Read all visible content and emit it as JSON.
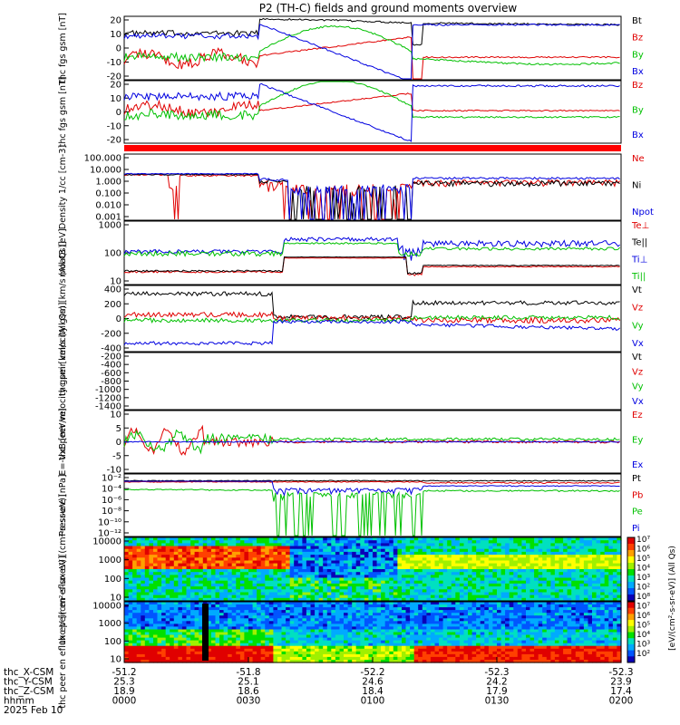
{
  "title": "P2 (TH-C) fields and ground moments overview",
  "chart_data": {
    "type": "line",
    "title": "P2 (TH-C) fields and ground moments overview",
    "x_footer": {
      "rows": [
        {
          "label": "thc_X-CSM",
          "values": [
            "-51.2",
            "-51.8",
            "-52.2",
            "-52.3",
            "-52.3"
          ]
        },
        {
          "label": "thc_Y-CSM",
          "values": [
            "25.3",
            "25.1",
            "24.6",
            "24.2",
            "23.9"
          ]
        },
        {
          "label": "thc_Z-CSM",
          "values": [
            "18.9",
            "18.6",
            "18.4",
            "17.9",
            "17.4"
          ]
        },
        {
          "label": "hhmm",
          "values": [
            "0000",
            "0030",
            "0100",
            "0130",
            "0200"
          ]
        }
      ],
      "date": "2025 Feb 10"
    },
    "panels": [
      {
        "id": "fgs1",
        "ylabel": "thc fgs gsm [nT]",
        "ylim": [
          -20,
          25
        ],
        "ticks": [
          "20",
          "10",
          "0",
          "-10",
          "-20"
        ],
        "legend": [
          {
            "name": "Bt",
            "color": "#000000"
          },
          {
            "name": "Bz",
            "color": "#e00000"
          },
          {
            "name": "By",
            "color": "#00c000"
          },
          {
            "name": "Bx",
            "color": "#0000e0"
          }
        ]
      },
      {
        "id": "fgs2",
        "ylabel": "thc fgs gsm [nT]",
        "ylim": [
          -28,
          20
        ],
        "ticks": [
          "20",
          "10",
          "0",
          "-10",
          "-20"
        ],
        "legend": [
          {
            "name": "Bz",
            "color": "#e00000"
          },
          {
            "name": "By",
            "color": "#00c000"
          },
          {
            "name": "Bx",
            "color": "#0000e0"
          }
        ]
      },
      {
        "id": "density",
        "ylabel": "Density 1/cc [cm-3]",
        "scale": "log",
        "ylim": [
          0.0005,
          150
        ],
        "ticks": [
          "100.000",
          "10.000",
          "1.000",
          "0.100",
          "0.010",
          "0.001"
        ],
        "legend": [
          {
            "name": "Ne",
            "color": "#e00000"
          },
          {
            "name": "Ni",
            "color": "#000000"
          },
          {
            "name": "Npot",
            "color": "#0000e0"
          }
        ]
      },
      {
        "id": "temp",
        "ylabel": "moat3 [eV]",
        "scale": "log",
        "ylim": [
          5,
          5000
        ],
        "ticks": [
          "1000",
          "100",
          "10"
        ],
        "legend": [
          {
            "name": "Te⊥",
            "color": "#e00000"
          },
          {
            "name": "Te||",
            "color": "#000000"
          },
          {
            "name": "Ti⊥",
            "color": "#0000e0"
          },
          {
            "name": "Ti||",
            "color": "#00c000"
          }
        ]
      },
      {
        "id": "peir_vel",
        "ylabel": "thc peir velocity gsm [km/s (All Qs)]",
        "ylim": [
          -450,
          500
        ],
        "ticks": [
          "400",
          "200",
          "0",
          "-200",
          "-400"
        ],
        "legend": [
          {
            "name": "Vt",
            "color": "#000000"
          },
          {
            "name": "Vz",
            "color": "#e00000"
          },
          {
            "name": "Vy",
            "color": "#00c000"
          },
          {
            "name": "Vx",
            "color": "#0000e0"
          }
        ]
      },
      {
        "id": "peer_vel",
        "ylabel": "thc peer velocity gsm [km/s (All Qs)]",
        "ylim": [
          -1500,
          0
        ],
        "ticks": [
          "-200",
          "-400",
          "-600",
          "-800",
          "-1000",
          "-1200",
          "-1400"
        ],
        "legend": [
          {
            "name": "Vt",
            "color": "#000000"
          },
          {
            "name": "Vz",
            "color": "#e00000"
          },
          {
            "name": "Vy",
            "color": "#00c000"
          },
          {
            "name": "Vx",
            "color": "#0000e0"
          }
        ]
      },
      {
        "id": "efield",
        "ylabel": "E=-VxB [mV/m]",
        "ylim": [
          -12,
          12
        ],
        "ticks": [
          "10",
          "5",
          "0",
          "-5",
          "-10"
        ],
        "legend": [
          {
            "name": "Ez",
            "color": "#e00000"
          },
          {
            "name": "Ey",
            "color": "#00c000"
          },
          {
            "name": "Ex",
            "color": "#0000e0"
          }
        ]
      },
      {
        "id": "pressure",
        "ylabel": "Pressure [nPa]",
        "scale": "log",
        "ylim": [
          1e-12,
          1
        ],
        "ticks": [
          "10⁻²",
          "10⁻⁴",
          "10⁻⁶",
          "10⁻⁸",
          "10⁻¹⁰",
          "10⁻¹²"
        ],
        "legend": [
          {
            "name": "Pt",
            "color": "#000000"
          },
          {
            "name": "Pb",
            "color": "#e00000"
          },
          {
            "name": "Pe",
            "color": "#00c000"
          },
          {
            "name": "Pi",
            "color": "#0000e0"
          }
        ]
      },
      {
        "id": "peir_spec",
        "type": "heatmap",
        "ylabel": "thc peir en eflux eV [(cm²-s-sr-eV)]",
        "scale": "log",
        "ylim": [
          6,
          15000
        ],
        "ticks": [
          "10000",
          "1000",
          "100",
          "10"
        ]
      },
      {
        "id": "peer_spec",
        "type": "heatmap",
        "ylabel": "thc peer en eflux eV [(cm²-s-sr-eV)]",
        "scale": "log",
        "ylim": [
          6,
          15000
        ],
        "ticks": [
          "10000",
          "1000",
          "100",
          "10"
        ]
      }
    ],
    "colorbar": {
      "label": "[eV/(cm²-s-sr-eV)] (All Qs)",
      "ticks": [
        "10⁷",
        "10⁶",
        "10⁵",
        "10⁴",
        "10³",
        "10²",
        "10⁸",
        "10⁷",
        "10⁶",
        "10⁵",
        "10⁴",
        "10³",
        "10²"
      ]
    }
  }
}
